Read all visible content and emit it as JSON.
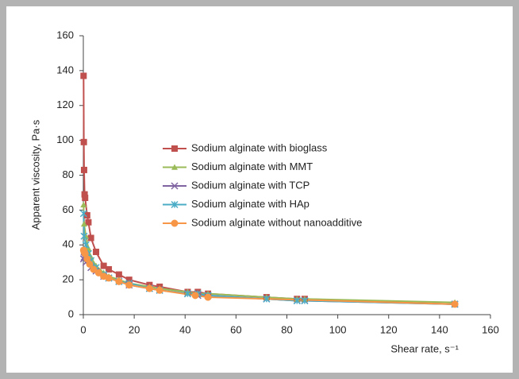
{
  "chart_data": {
    "type": "line",
    "x_label": "Shear rate, s⁻¹",
    "y_label": "Apparent viscosity, Pa·s",
    "xlim": [
      0,
      160
    ],
    "xticks": [
      0,
      20,
      40,
      60,
      80,
      100,
      120,
      140,
      160
    ],
    "ylim": [
      0,
      160
    ],
    "yticks": [
      0,
      20,
      40,
      60,
      80,
      100,
      120,
      140,
      160
    ],
    "grid": false,
    "legend": "center",
    "series": [
      {
        "name": "Sodium alginate with bioglass",
        "color": "#c0504d",
        "marker": "square",
        "x": [
          0.1,
          0.2,
          0.3,
          0.5,
          0.7,
          1.5,
          2,
          3,
          5,
          8,
          10,
          14,
          18,
          26,
          30,
          41,
          45,
          49,
          72,
          84,
          87,
          146
        ],
        "values": [
          137,
          99,
          83,
          69,
          67,
          57,
          53,
          44,
          36,
          28,
          26,
          23,
          20,
          17,
          16,
          13,
          13,
          12,
          10,
          9,
          9,
          6
        ]
      },
      {
        "name": "Sodium alginate with MMT",
        "color": "#9bbb59",
        "marker": "triangle",
        "x": [
          0.1,
          0.3,
          1,
          2,
          3,
          5,
          8,
          10,
          14,
          18,
          26,
          30,
          41,
          45,
          49,
          72,
          84,
          87,
          146
        ],
        "values": [
          63,
          52,
          45,
          38,
          33,
          28,
          24,
          22,
          20,
          18,
          16,
          15,
          13,
          12,
          12,
          10,
          9,
          9,
          7
        ]
      },
      {
        "name": "Sodium alginate with TCP",
        "color": "#8064a2",
        "marker": "x",
        "x": [
          0.1,
          0.3,
          1,
          3,
          5,
          8,
          10,
          14,
          18,
          26,
          30,
          41,
          45,
          49,
          72,
          84,
          87,
          146
        ],
        "values": [
          32,
          33,
          30,
          27,
          25,
          22,
          21,
          19,
          17,
          15,
          14,
          12,
          11,
          11,
          9,
          8,
          8,
          6
        ]
      },
      {
        "name": "Sodium alginate with HAp",
        "color": "#4bacc6",
        "marker": "star",
        "x": [
          0.1,
          0.3,
          1,
          2,
          3,
          5,
          8,
          10,
          14,
          18,
          26,
          30,
          41,
          45,
          49,
          72,
          84,
          87,
          146
        ],
        "values": [
          58,
          45,
          40,
          35,
          31,
          27,
          23,
          21,
          19,
          18,
          15,
          14,
          12,
          12,
          11,
          9,
          8,
          8,
          6
        ]
      },
      {
        "name": "Sodium alginate without nanoadditive",
        "color": "#f79646",
        "marker": "circle",
        "x": [
          0.1,
          0.3,
          0.7,
          1.5,
          2.5,
          4,
          6,
          8,
          10,
          14,
          18,
          26,
          30,
          44,
          49,
          146
        ],
        "values": [
          37,
          36,
          35,
          32,
          29,
          26,
          24,
          22,
          21,
          19,
          17,
          15,
          14,
          11,
          10,
          6
        ]
      }
    ]
  }
}
